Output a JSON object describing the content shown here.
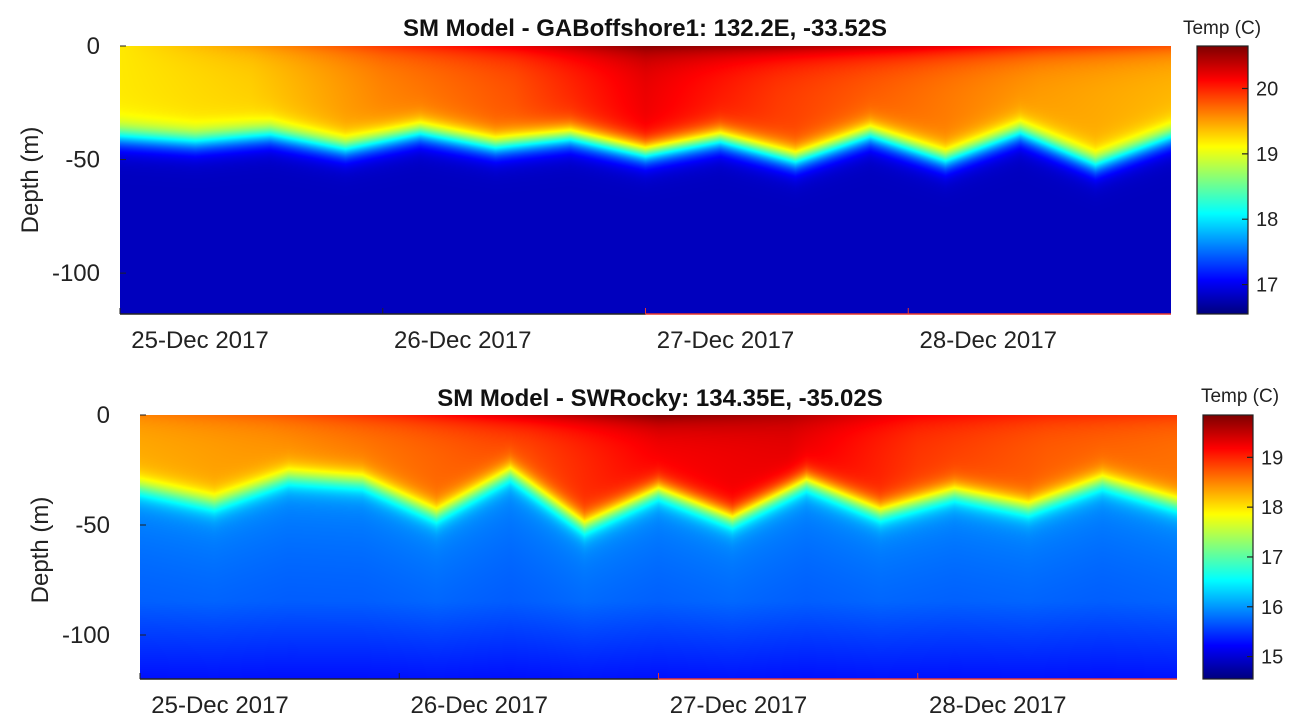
{
  "colors": {
    "future_tick_label": "#e8362a",
    "forecast_axis": "#e8362a",
    "axis": "#222222"
  },
  "colormap": "jet",
  "chart_data": [
    {
      "type": "heatmap",
      "title": "SM Model - GABoffshore1: 132.2E, -33.52S",
      "xlabel": "",
      "ylabel": "Depth (m)",
      "x_ticks": [
        "25-Dec 2017",
        "26-Dec 2017",
        "27-Dec 2017",
        "28-Dec 2017"
      ],
      "x_tick_colors": [
        "#222222",
        "#222222",
        "#e8362a",
        "#e8362a"
      ],
      "x_range_days": [
        0,
        4.0
      ],
      "forecast_start_day": 2.0,
      "y_ticks": [
        0,
        -50,
        -100
      ],
      "ylim": [
        -118,
        0
      ],
      "colorbar_label": "Temp (C)",
      "colorbar_ticks": [
        17,
        18,
        19,
        20
      ],
      "clim": [
        16.55,
        20.65
      ],
      "mixed_layer_temp": [
        19.2,
        19.3,
        19.6,
        19.8,
        20.2,
        19.9,
        19.7,
        19.5,
        19.4
      ],
      "surface_temp": [
        19.2,
        19.5,
        19.9,
        20.2,
        20.6,
        20.5,
        20.3,
        20.0,
        19.8
      ],
      "thermocline_depth": [
        -40,
        -42,
        -39,
        -45,
        -38,
        -44,
        -40,
        -47,
        -41,
        -50,
        -39,
        -50,
        -38,
        -52,
        -40
      ],
      "deep_temp": 16.7
    },
    {
      "type": "heatmap",
      "title": "SM Model - SWRocky: 134.35E, -35.02S",
      "xlabel": "",
      "ylabel": "Depth (m)",
      "x_ticks": [
        "25-Dec 2017",
        "26-Dec 2017",
        "27-Dec 2017",
        "28-Dec 2017"
      ],
      "x_tick_colors": [
        "#222222",
        "#222222",
        "#e8362a",
        "#e8362a"
      ],
      "x_range_days": [
        0,
        4.0
      ],
      "forecast_start_day": 2.0,
      "y_ticks": [
        0,
        -50,
        -100
      ],
      "ylim": [
        -120,
        0
      ],
      "colorbar_label": "Temp (C)",
      "colorbar_ticks": [
        15,
        16,
        17,
        18,
        19
      ],
      "clim": [
        14.55,
        19.85
      ],
      "mixed_layer_temp": [
        18.3,
        18.4,
        18.6,
        18.8,
        19.2,
        19.3,
        18.9,
        18.7,
        18.6
      ],
      "surface_temp": [
        18.5,
        18.7,
        19.0,
        19.4,
        19.8,
        19.6,
        19.2,
        19.0,
        18.9
      ],
      "thermocline_depth": [
        -33,
        -40,
        -28,
        -30,
        -45,
        -26,
        -50,
        -34,
        -47,
        -30,
        -44,
        -35,
        -42,
        -30,
        -40
      ],
      "deep_temp": 15.6
    }
  ]
}
